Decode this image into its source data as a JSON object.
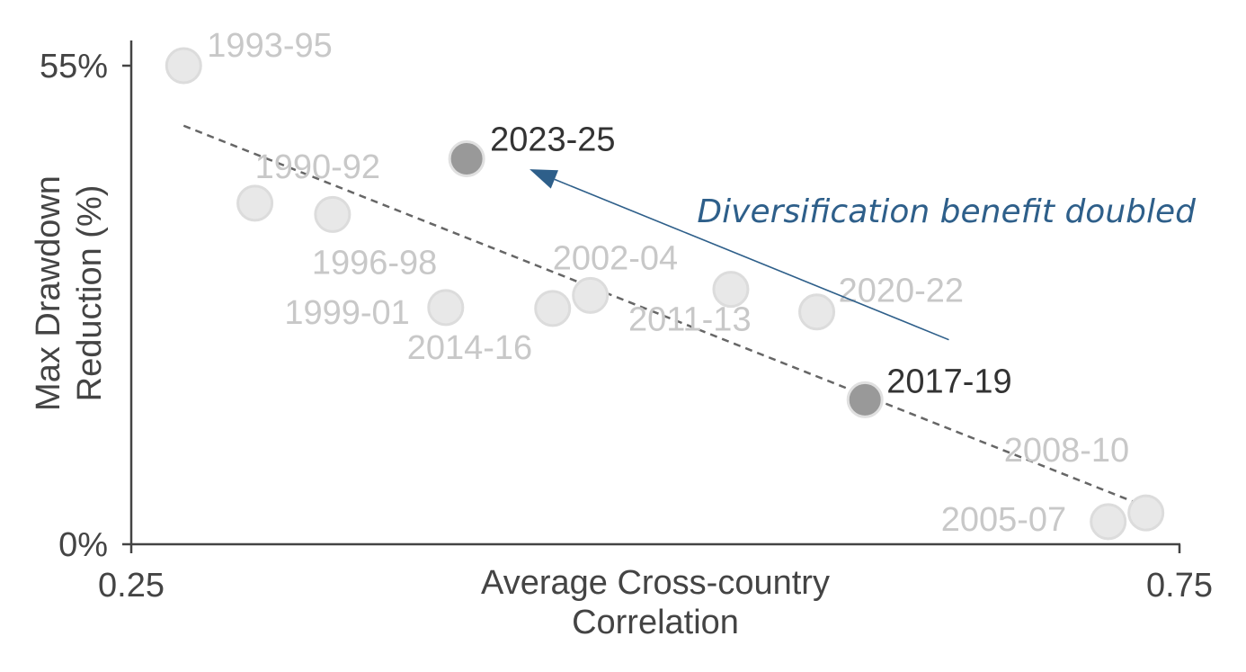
{
  "chart_data": {
    "type": "scatter",
    "xlabel": [
      "Average Cross-country",
      "Correlation"
    ],
    "ylabel": [
      "Max Drawdown",
      "Reduction (%)"
    ],
    "xlim": [
      0.25,
      0.75
    ],
    "ylim": [
      0,
      55
    ],
    "xticks": [
      {
        "value": 0.25,
        "label": "0.25"
      },
      {
        "value": 0.75,
        "label": "0.75"
      }
    ],
    "yticks": [
      {
        "value": 0,
        "label": "0%"
      },
      {
        "value": 55,
        "label": "55%"
      }
    ],
    "grid": false,
    "points": [
      {
        "label": "1993-95",
        "x": 0.275,
        "y": 55.0,
        "highlight": false
      },
      {
        "label": "1990-92",
        "x": 0.309,
        "y": 39.2,
        "highlight": false
      },
      {
        "label": "1996-98",
        "x": 0.346,
        "y": 37.9,
        "highlight": false
      },
      {
        "label": "1999-01",
        "x": 0.4,
        "y": 27.2,
        "highlight": false
      },
      {
        "label": "2023-25",
        "x": 0.41,
        "y": 44.3,
        "highlight": true
      },
      {
        "label": "2014-16",
        "x": 0.451,
        "y": 27.1,
        "highlight": false
      },
      {
        "label": "2002-04",
        "x": 0.469,
        "y": 28.6,
        "highlight": false
      },
      {
        "label": "2011-13",
        "x": 0.536,
        "y": 29.3,
        "highlight": false
      },
      {
        "label": "2020-22",
        "x": 0.577,
        "y": 26.7,
        "highlight": false
      },
      {
        "label": "2017-19",
        "x": 0.6,
        "y": 16.6,
        "highlight": true
      },
      {
        "label": "2005-07",
        "x": 0.716,
        "y": 2.6,
        "highlight": false
      },
      {
        "label": "2008-10",
        "x": 0.734,
        "y": 3.6,
        "highlight": false
      }
    ],
    "trendline": {
      "x": [
        0.275,
        0.73
      ],
      "y": [
        48.1,
        4.7
      ],
      "style": "dashed",
      "color": "#666666"
    },
    "annotation": {
      "text": "Diversification benefit doubled",
      "color": "#2e5f8a",
      "arrow_from": {
        "x": 0.64,
        "y": 23.5
      },
      "arrow_to": {
        "x": 0.44,
        "y": 43.1
      }
    },
    "colors": {
      "point_faded": "#e8e8e8",
      "point_faded_stroke": "#dcdcdc",
      "point_highlight": "#999999",
      "point_highlight_stroke": "#e0e0e0",
      "label_faded": "#c8c8c8",
      "label_highlight": "#333333",
      "axis": "#444444"
    }
  }
}
